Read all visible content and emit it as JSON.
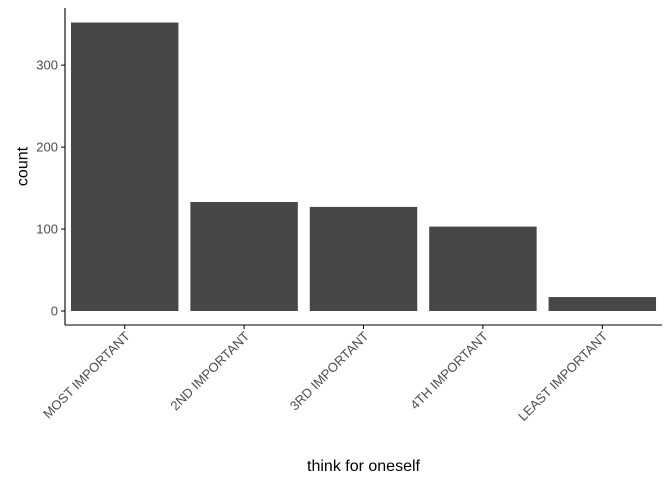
{
  "chart_data": {
    "type": "bar",
    "categories": [
      "MOST IMPORTANT",
      "2ND IMPORTANT",
      "3RD IMPORTANT",
      "4TH IMPORTANT",
      "LEAST IMPORTANT"
    ],
    "values": [
      352,
      133,
      127,
      103,
      17
    ],
    "xlabel": "think for oneself",
    "ylabel": "count",
    "yticks": [
      "0",
      "100",
      "200",
      "300"
    ],
    "ylim": [
      0,
      370
    ],
    "grid": false,
    "legend": "none",
    "colors": {
      "bar": "#474747",
      "axis": "#000000",
      "tick_label": "#4d4d4d"
    }
  }
}
